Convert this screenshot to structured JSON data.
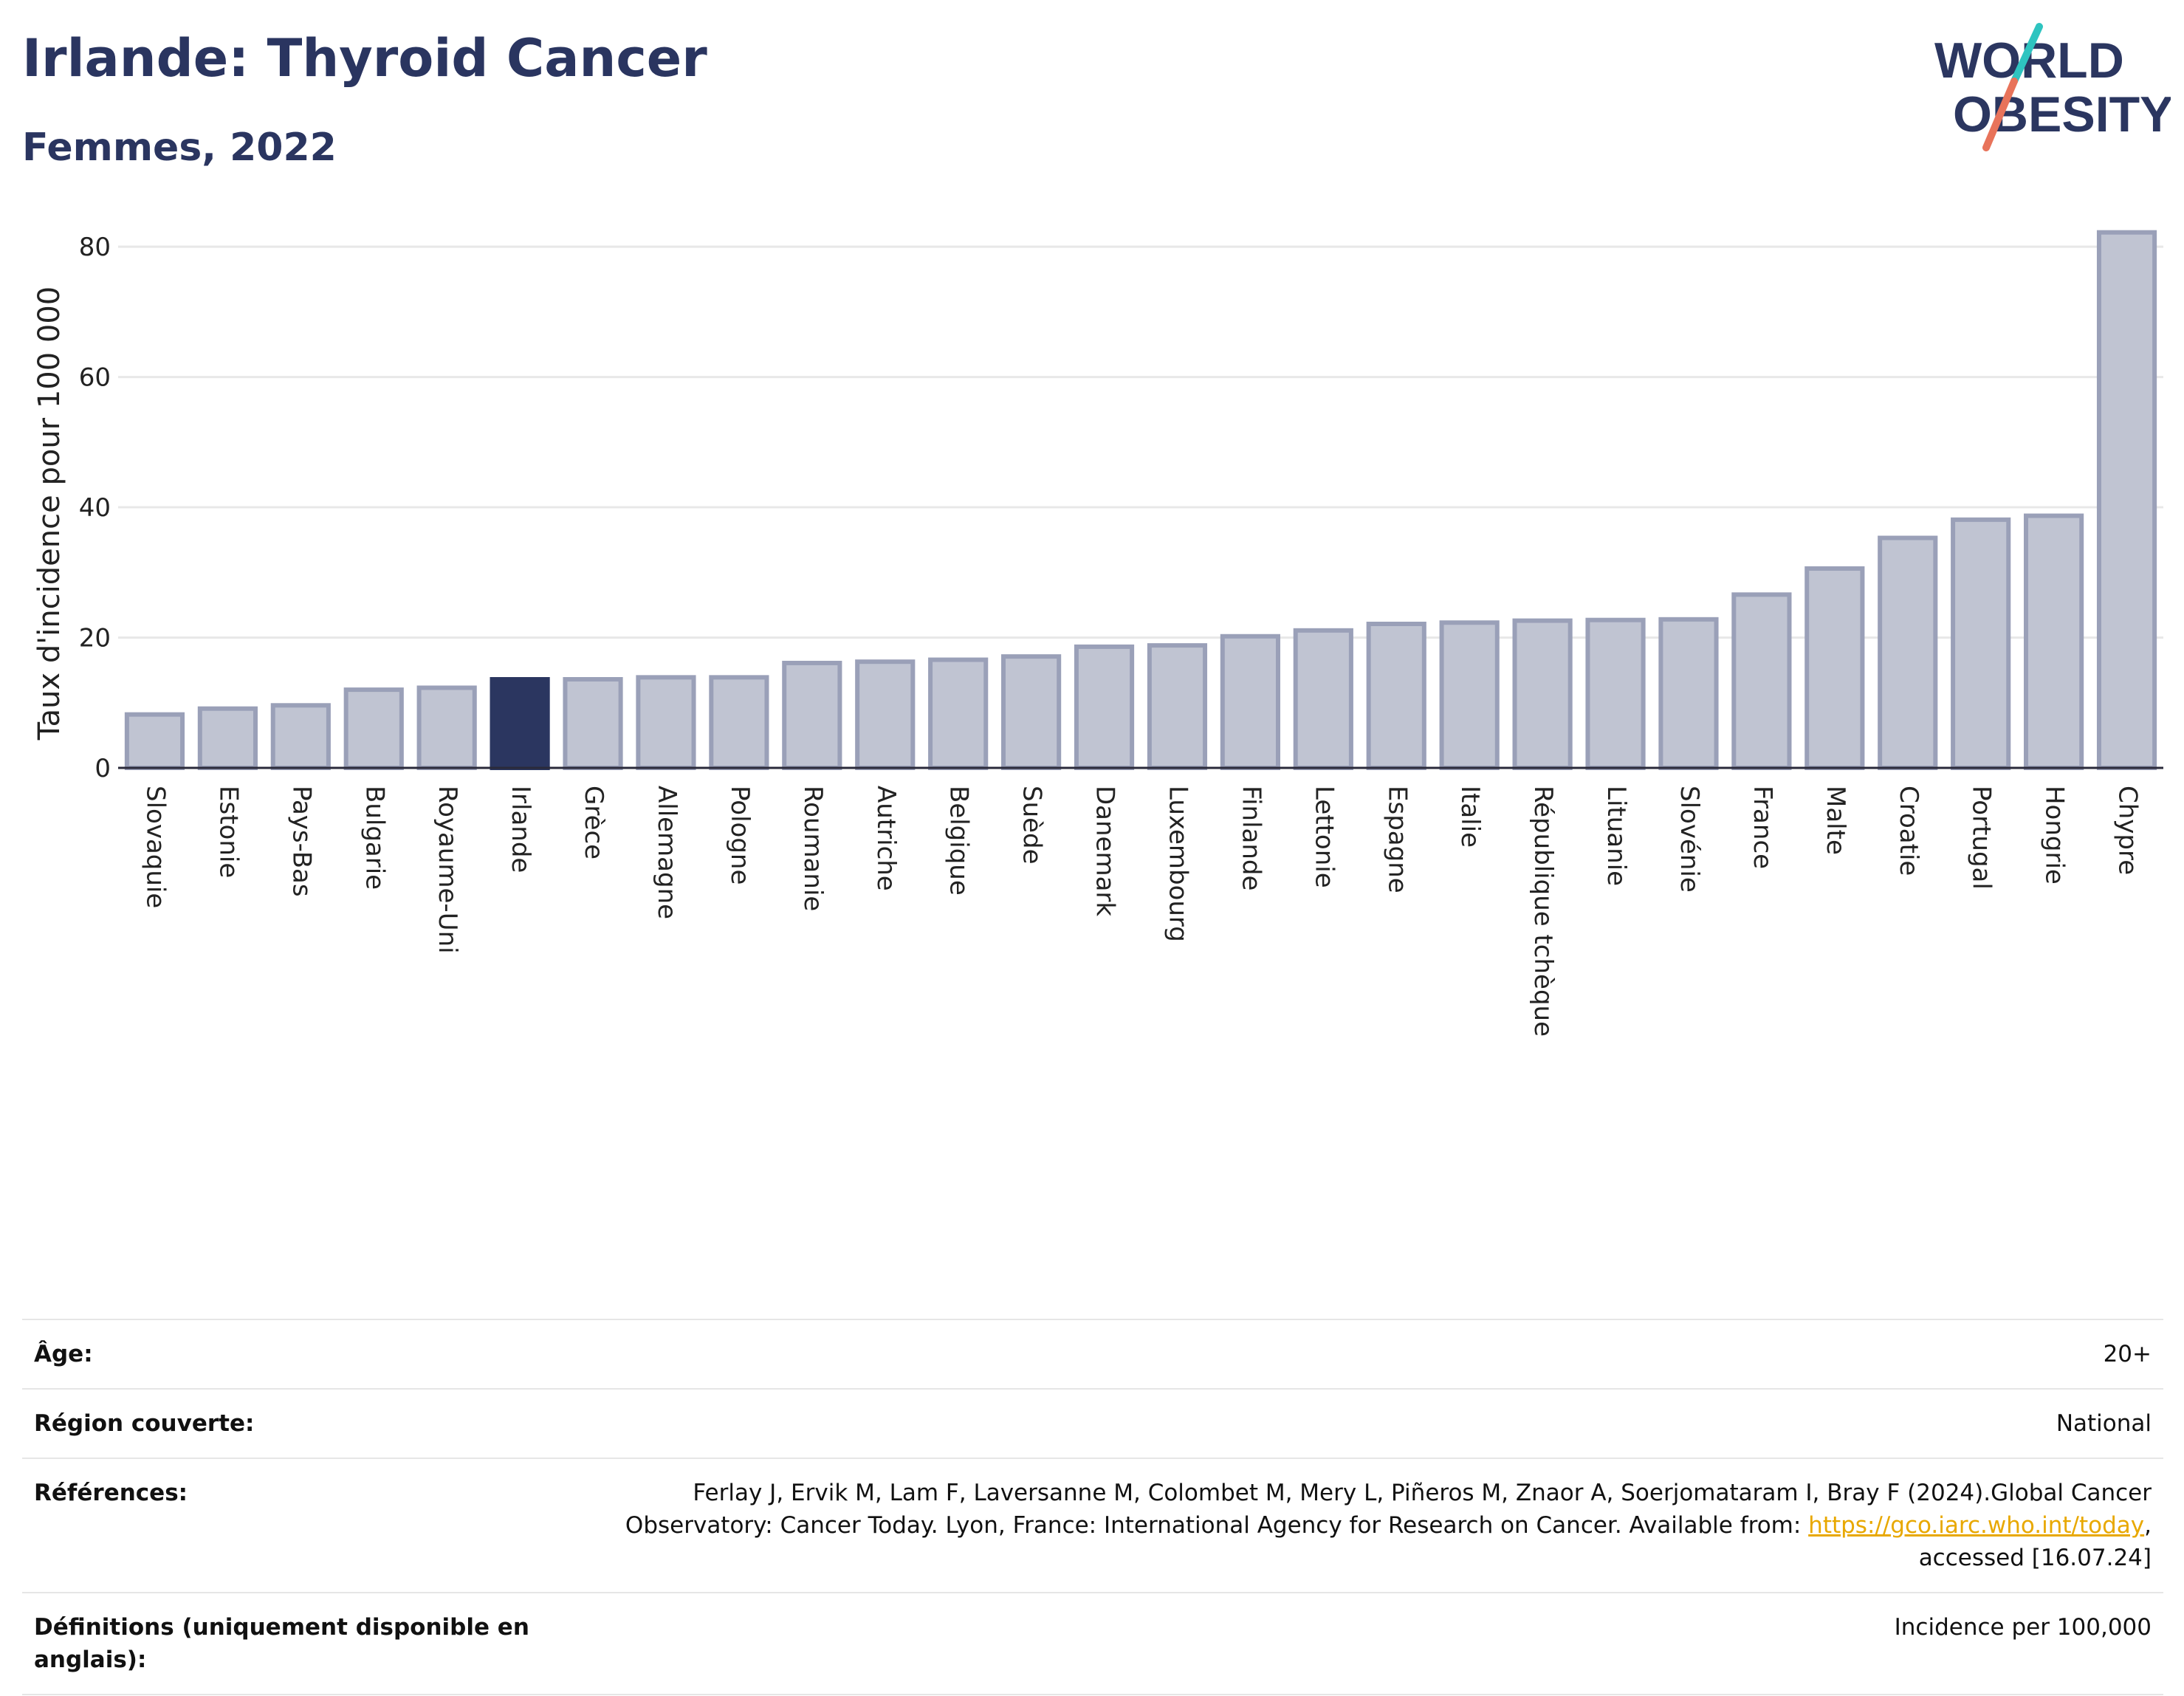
{
  "header": {
    "title": "Irlande: Thyroid Cancer",
    "subtitle": "Femmes, 2022"
  },
  "logo": {
    "line1": "WORLD",
    "line2": "OBESITY"
  },
  "colors": {
    "highlight": "#2b3660",
    "bar": "#c0c4d2",
    "bar_border": "#9aa0b8",
    "accent_teal": "#2ec4c0",
    "accent_coral": "#e8735a",
    "link": "#e8a800"
  },
  "chart_data": {
    "type": "bar",
    "ylabel": "Taux d'incidence pour 100 000",
    "ylim": [
      0,
      85
    ],
    "yticks": [
      0,
      20,
      40,
      60,
      80
    ],
    "grid": true,
    "highlight": "Irlande",
    "categories": [
      "Slovaquie",
      "Estonie",
      "Pays-Bas",
      "Bulgarie",
      "Royaume-Uni",
      "Irlande",
      "Grèce",
      "Allemagne",
      "Pologne",
      "Roumanie",
      "Autriche",
      "Belgique",
      "Suède",
      "Danemark",
      "Luxembourg",
      "Finlande",
      "Lettonie",
      "Espagne",
      "Italie",
      "République tchèque",
      "Lituanie",
      "Slovénie",
      "France",
      "Malte",
      "Croatie",
      "Portugal",
      "Hongrie",
      "Chypre"
    ],
    "values": [
      8.2,
      9.1,
      9.6,
      12.0,
      12.3,
      13.6,
      13.6,
      13.9,
      13.9,
      16.1,
      16.3,
      16.6,
      17.1,
      18.6,
      18.8,
      20.2,
      21.1,
      22.1,
      22.3,
      22.6,
      22.7,
      22.8,
      26.6,
      30.6,
      35.3,
      38.1,
      38.7,
      82.2
    ]
  },
  "meta": [
    {
      "key": "Âge:",
      "value": "20+"
    },
    {
      "key": "Région couverte:",
      "value": "National"
    },
    {
      "key": "Références:",
      "value_before": "Ferlay J, Ervik M, Lam F, Laversanne M, Colombet M, Mery L, Piñeros M, Znaor A, Soerjomataram I, Bray F (2024).Global Cancer Observatory: Cancer Today. Lyon, France: International Agency for Research on Cancer. Available from: ",
      "link": "https://gco.iarc.who.int/today",
      "value_after": ", accessed [16.07.24]"
    },
    {
      "key": "Définitions (uniquement disponible en anglais):",
      "value": "Incidence per 100,000"
    }
  ]
}
